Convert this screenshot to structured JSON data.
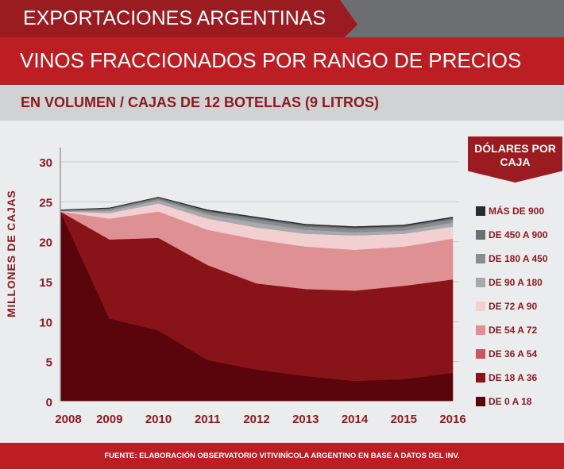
{
  "header": {
    "kicker": "EXPORTACIONES ARGENTINAS",
    "title": "VINOS FRACCIONADOS POR RANGO DE PRECIOS",
    "subtitle": "EN VOLUMEN / CAJAS DE 12 BOTELLAS (9 LITROS)"
  },
  "footer": "FUENTE: ELABORACIÓN OBSERVATORIO VITIVINÍCOLA ARGENTINO EN BASE A DATOS DEL INV.",
  "chart_data": {
    "type": "area",
    "stacked": true,
    "x": [
      "2008",
      "2009",
      "2010",
      "2011",
      "2012",
      "2013",
      "2014",
      "2015",
      "2016"
    ],
    "ylabel": "MILLONES DE CAJAS",
    "ylim": [
      0,
      30
    ],
    "yticks": [
      "0",
      "5",
      "10",
      "15",
      "20",
      "25",
      "30"
    ],
    "grid": true,
    "legend_title": "DÓLARES POR CAJA",
    "legend_position": "right",
    "series": [
      {
        "name": "DE 0 A 18",
        "color": "#5a050b",
        "values": [
          23.8,
          10.4,
          8.9,
          5.2,
          4.0,
          3.2,
          2.6,
          2.8,
          3.6
        ]
      },
      {
        "name": "DE 18 A 36",
        "color": "#88141a",
        "values": [
          0,
          9.9,
          11.6,
          11.9,
          10.8,
          10.9,
          11.3,
          11.7,
          11.7
        ]
      },
      {
        "name": "DE 36 A 54",
        "color": "#d0545a",
        "values": [
          0,
          0,
          0,
          0,
          0,
          0,
          0,
          0,
          0
        ]
      },
      {
        "name": "DE 54 A 72",
        "color": "#de9093",
        "values": [
          0,
          2.6,
          3.3,
          4.4,
          5.5,
          5.3,
          5.1,
          4.9,
          5.1
        ]
      },
      {
        "name": "DE 72 A 90",
        "color": "#f2cfd0",
        "values": [
          0,
          0.7,
          1.0,
          1.4,
          1.5,
          1.6,
          1.8,
          1.6,
          1.5
        ]
      },
      {
        "name": "DE 90 A 180",
        "color": "#a7a9ac",
        "values": [
          0.05,
          0.3,
          0.4,
          0.5,
          0.6,
          0.5,
          0.4,
          0.4,
          0.5
        ]
      },
      {
        "name": "DE 180 A 450",
        "color": "#8a8c8f",
        "values": [
          0.05,
          0.2,
          0.2,
          0.3,
          0.4,
          0.4,
          0.4,
          0.4,
          0.4
        ]
      },
      {
        "name": "DE 450 A 900",
        "color": "#6d6e71",
        "values": [
          0.05,
          0.1,
          0.15,
          0.2,
          0.2,
          0.2,
          0.2,
          0.2,
          0.2
        ]
      },
      {
        "name": "MÁS DE 900",
        "color": "#2b2b2d",
        "values": [
          0.05,
          0.05,
          0.05,
          0.1,
          0.1,
          0.1,
          0.1,
          0.1,
          0.1
        ]
      }
    ]
  }
}
